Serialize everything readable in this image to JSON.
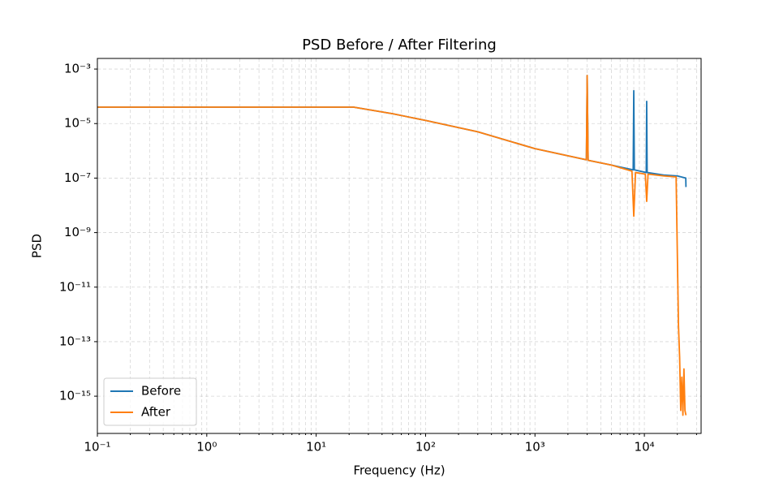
{
  "chart_data": {
    "type": "line",
    "title": "PSD Before / After Filtering",
    "xlabel": "Frequency (Hz)",
    "ylabel": "PSD",
    "xscale": "log",
    "yscale": "log",
    "grid": true,
    "minor_grid": true,
    "legend": "lower left",
    "xlim": [
      0.1,
      33000
    ],
    "ylim": [
      4.3e-17,
      0.00245
    ],
    "xticks": [
      {
        "value": 0.1,
        "label": "10⁻¹"
      },
      {
        "value": 1,
        "label": "10⁰"
      },
      {
        "value": 10,
        "label": "10¹"
      },
      {
        "value": 100,
        "label": "10²"
      },
      {
        "value": 1000,
        "label": "10³"
      },
      {
        "value": 10000,
        "label": "10⁴"
      }
    ],
    "yticks": [
      {
        "value": 1e-15,
        "label": "10⁻¹⁵"
      },
      {
        "value": 1e-13,
        "label": "10⁻¹³"
      },
      {
        "value": 1e-11,
        "label": "10⁻¹¹"
      },
      {
        "value": 1e-09,
        "label": "10⁻⁹"
      },
      {
        "value": 1e-07,
        "label": "10⁻⁷"
      },
      {
        "value": 1e-05,
        "label": "10⁻⁵"
      },
      {
        "value": 0.001,
        "label": "10⁻³"
      }
    ],
    "series": [
      {
        "name": "Before",
        "color": "#1f77b4",
        "x": [
          0.1,
          1,
          10,
          22,
          50,
          100,
          300,
          1000,
          2950,
          3000,
          3060,
          5000,
          7900,
          8000,
          8100,
          10400,
          10500,
          10600,
          15000,
          20000,
          23900,
          24000
        ],
        "values": [
          4e-05,
          4e-05,
          4e-05,
          4e-05,
          2.3e-05,
          1.3e-05,
          5e-06,
          1.2e-06,
          4.7e-07,
          0.00058,
          4.5e-07,
          3e-07,
          2e-07,
          0.00016,
          2e-07,
          1.6e-07,
          6.5e-05,
          1.6e-07,
          1.3e-07,
          1.2e-07,
          1e-07,
          4.7e-08
        ]
      },
      {
        "name": "After",
        "color": "#ff7f0e",
        "x": [
          0.1,
          1,
          10,
          22,
          50,
          100,
          300,
          1000,
          2950,
          3000,
          3060,
          5000,
          7700,
          8000,
          8300,
          10200,
          10500,
          10800,
          15000,
          19500,
          20500,
          21000,
          21500,
          22000,
          22500,
          23000,
          23500,
          24000
        ],
        "values": [
          4e-05,
          4e-05,
          4e-05,
          4e-05,
          2.3e-05,
          1.3e-05,
          5e-06,
          1.2e-06,
          4.7e-07,
          0.00058,
          4.5e-07,
          3e-07,
          1.8e-07,
          4e-09,
          1.6e-07,
          1.4e-07,
          1.4e-08,
          1.4e-07,
          1.2e-07,
          1.1e-07,
          4e-13,
          2.7e-14,
          3e-16,
          5e-15,
          2e-16,
          1e-14,
          3e-16,
          2e-16
        ]
      }
    ]
  }
}
